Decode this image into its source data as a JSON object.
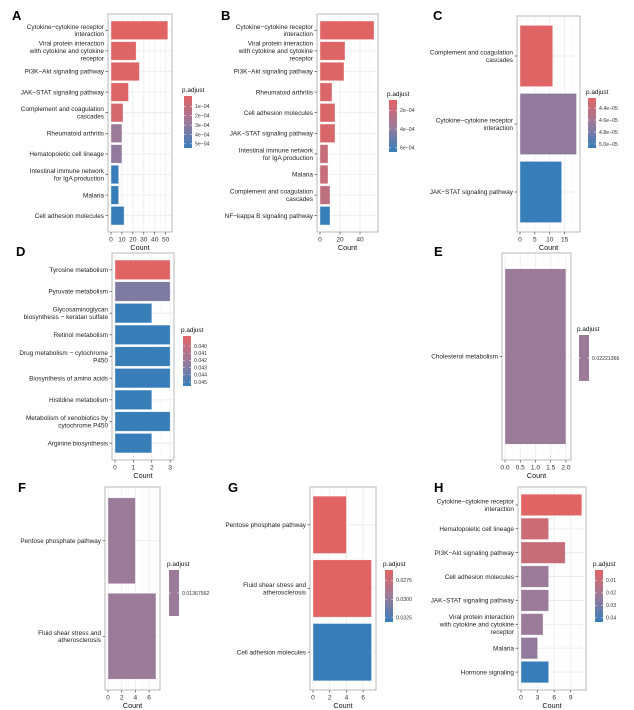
{
  "figure": {
    "colors": {
      "low_padj": "#E06464",
      "high_padj": "#377EB8",
      "mid": "#9C7A99"
    }
  },
  "chart_data": [
    {
      "panel": "A",
      "type": "bar",
      "orientation": "horizontal",
      "xlabel": "Count",
      "xlim": [
        0,
        54
      ],
      "xticks": [
        0,
        10,
        20,
        30,
        40,
        50
      ],
      "categories": [
        "Cytokine−cytokine receptor\ninteraction",
        "Viral protein interaction\nwith cytokine and cytokine\nreceptor",
        "PI3K−Akt signaling pathway",
        "JAK−STAT signaling pathway",
        "Complement and coagulation\ncascades",
        "Rheumatoid arthritis",
        "Hematopoietic cell lineage",
        "Intestinal immune network\nfor IgA production",
        "Malaria",
        "Cell adhesion molecules"
      ],
      "values": [
        52,
        23,
        26,
        16,
        11,
        10,
        10,
        7,
        7,
        12
      ],
      "color_value": [
        0.0,
        0.02,
        0.02,
        0.03,
        0.08,
        0.5,
        0.55,
        1.0,
        1.0,
        1.0
      ],
      "legend": {
        "title": "p.adjust",
        "ticks": [
          "1e−04",
          "2e−04",
          "3e−04",
          "4e−04",
          "5e−04"
        ]
      }
    },
    {
      "panel": "B",
      "type": "bar",
      "orientation": "horizontal",
      "xlabel": "Count",
      "xlim": [
        0,
        56
      ],
      "xticks": [
        0,
        20,
        40
      ],
      "categories": [
        "Cytokine−cytokine receptor\ninteraction",
        "Viral protein interaction\nwith cytokine and cytokine\nreceptor",
        "PI3K−Akt signaling pathway",
        "Rheumatoid arthritis",
        "Cell adhesion molecules",
        "JAK−STAT signaling pathway",
        "Intestinal immune network\nfor IgA production",
        "Malaria",
        "Complement and coagulation\ncascades",
        "NF−kappa B signaling pathway"
      ],
      "values": [
        54,
        25,
        24,
        12,
        15,
        15,
        8,
        8,
        10,
        10
      ],
      "color_value": [
        0.0,
        0.02,
        0.02,
        0.05,
        0.05,
        0.05,
        0.2,
        0.2,
        0.25,
        1.0
      ],
      "legend": {
        "title": "p.adjust",
        "ticks": [
          "2e−04",
          "4e−04",
          "6e−04"
        ]
      }
    },
    {
      "panel": "C",
      "type": "bar",
      "orientation": "horizontal",
      "xlabel": "Count",
      "xlim": [
        0,
        19.5
      ],
      "xticks": [
        0,
        5,
        10,
        15
      ],
      "categories": [
        "Complement and coagulation\ncascades",
        "Cytokine−cytokine receptor\ninteraction",
        "JAK−STAT signaling pathway"
      ],
      "values": [
        11,
        19,
        14
      ],
      "color_value": [
        0.0,
        0.55,
        1.0
      ],
      "legend": {
        "title": "p.adjust",
        "ticks": [
          "4.4e−05",
          "4.6e−05",
          "4.8e−05",
          "5.0e−05"
        ]
      }
    },
    {
      "panel": "D",
      "type": "bar",
      "orientation": "horizontal",
      "xlabel": "Count",
      "xlim": [
        0,
        3.1
      ],
      "xticks": [
        0,
        1,
        2,
        3
      ],
      "categories": [
        "Tyrosine metabolism",
        "Pyruvate metabolism",
        "Glycosaminoglycan\nbiosynthesis − keratan sulfate",
        "Retinol metabolism",
        "Drug metabolism − cytochrome\nP450",
        "Biosynthesis of amino acids",
        "Histidine metabolism",
        "Metabolism of xenobiotics by\ncytochrome P450",
        "Arginine biosynthesis"
      ],
      "values": [
        3,
        3,
        2,
        3,
        3,
        3,
        2,
        3,
        2
      ],
      "color_value": [
        0.0,
        0.65,
        1.0,
        1.0,
        1.0,
        1.0,
        1.0,
        1.0,
        1.0
      ],
      "legend": {
        "title": "p.adjust",
        "ticks": [
          "0.040",
          "0.041",
          "0.042",
          "0.043",
          "0.044",
          "0.045"
        ]
      }
    },
    {
      "panel": "E",
      "type": "bar",
      "orientation": "horizontal",
      "xlabel": "Count",
      "xlim": [
        0,
        2.1
      ],
      "xticks": [
        "0.0",
        "0.5",
        "1.0",
        "1.5",
        "2.0"
      ],
      "categories": [
        "Cholesterol metabolism"
      ],
      "values": [
        2
      ],
      "color_value": [
        0.5
      ],
      "legend": {
        "title": "p.adjust",
        "ticks": [
          "0.02221366"
        ],
        "single": true
      }
    },
    {
      "panel": "F",
      "type": "bar",
      "orientation": "horizontal",
      "xlabel": "Count",
      "xlim": [
        0,
        7.3
      ],
      "xticks": [
        0,
        2,
        4,
        6
      ],
      "categories": [
        "Pentose phosphate pathway",
        "Fluid shear stress and\natherosclerosis"
      ],
      "values": [
        4,
        7
      ],
      "color_value": [
        0.5,
        0.5
      ],
      "legend": {
        "title": "p.adjust",
        "ticks": [
          "0.01367562"
        ],
        "single": true
      }
    },
    {
      "panel": "G",
      "type": "bar",
      "orientation": "horizontal",
      "xlabel": "Count",
      "xlim": [
        0,
        7.3
      ],
      "xticks": [
        0,
        2,
        4,
        6
      ],
      "categories": [
        "Pentose phosphate pathway",
        "Fluid shear stress and\natherosclerosis",
        "Cell adhesion molecules"
      ],
      "values": [
        4,
        7,
        7
      ],
      "color_value": [
        0.0,
        0.0,
        1.0
      ],
      "legend": {
        "title": "p.adjust",
        "ticks": [
          "0.0275",
          "0.0300",
          "0.0325"
        ]
      }
    },
    {
      "panel": "H",
      "type": "bar",
      "orientation": "horizontal",
      "xlabel": "Count",
      "xlim": [
        0,
        11.4
      ],
      "xticks": [
        0,
        3,
        6,
        9
      ],
      "categories": [
        "Cytokine−cytokine receptor\ninteraction",
        "Hematopoietic cell lineage",
        "PI3K−Akt signaling pathway",
        "Cell adhesion molecules",
        "JAK−STAT signaling pathway",
        "Viral protein interaction\nwith cytokine and cytokine\nreceptor",
        "Malaria",
        "Hormone signaling"
      ],
      "values": [
        11,
        5,
        8,
        5,
        5,
        4,
        3,
        5
      ],
      "color_value": [
        0.0,
        0.15,
        0.2,
        0.5,
        0.5,
        0.5,
        0.55,
        1.0
      ],
      "legend": {
        "title": "p.adjust",
        "ticks": [
          "0.01",
          "0.02",
          "0.03",
          "0.04"
        ]
      }
    }
  ]
}
